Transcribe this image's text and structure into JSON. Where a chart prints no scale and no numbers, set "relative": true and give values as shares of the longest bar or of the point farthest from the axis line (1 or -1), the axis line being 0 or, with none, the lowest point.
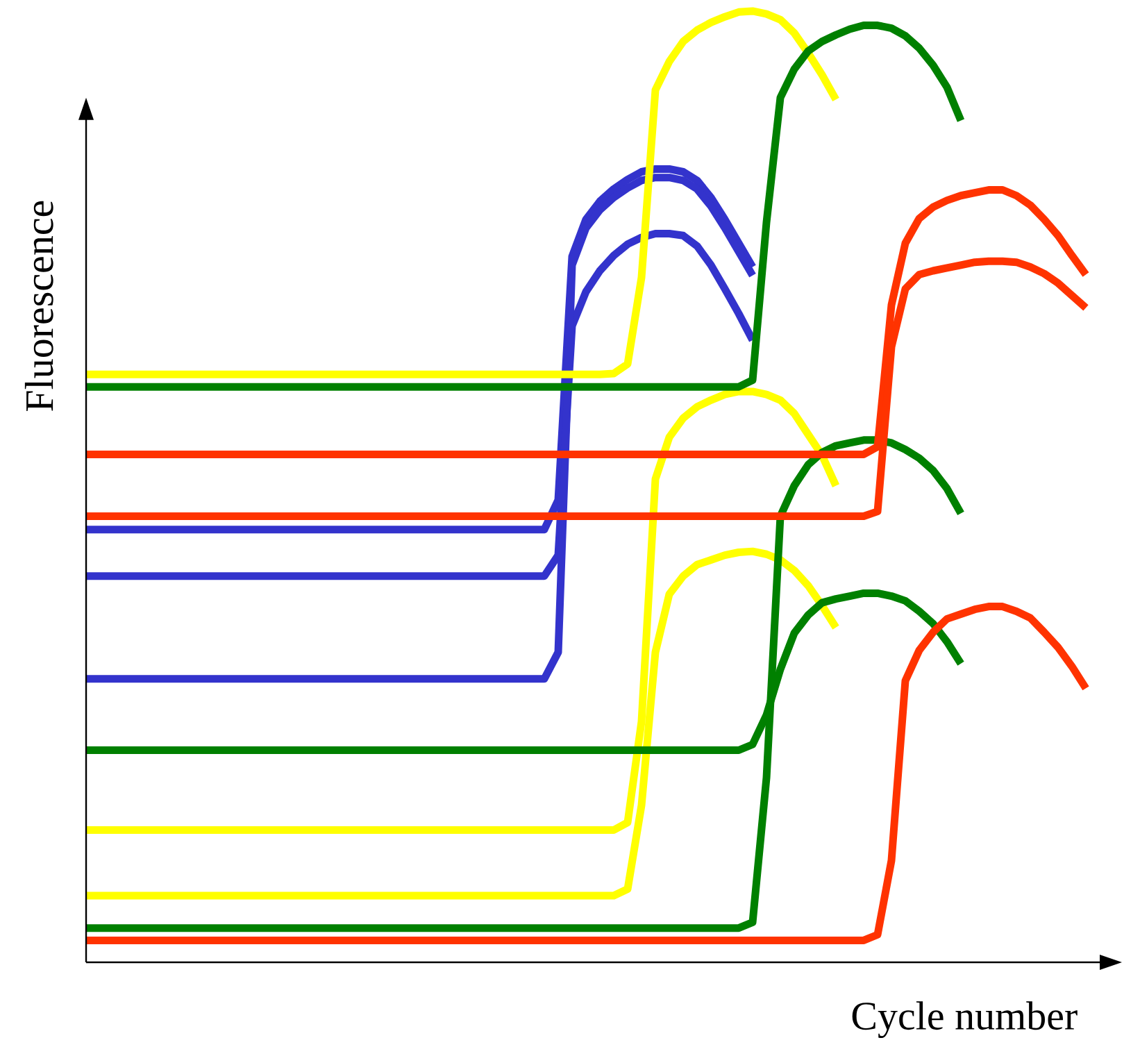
{
  "chart_data": {
    "type": "line",
    "relative": true,
    "xlabel": "Cycle number",
    "ylabel": "Fluorescence",
    "categories": [
      null,
      null,
      null,
      null,
      null,
      null,
      null,
      null,
      null,
      null,
      null,
      null,
      null,
      null,
      null,
      null,
      null,
      null,
      null,
      null,
      null,
      null,
      null,
      null,
      null,
      null,
      null,
      null,
      null,
      null,
      null,
      null,
      null,
      null,
      null,
      null,
      null,
      null,
      null,
      null,
      null,
      null,
      null,
      null,
      null,
      null,
      null,
      null,
      null,
      null,
      null,
      null,
      null,
      null,
      null,
      null,
      null,
      null,
      null,
      null,
      null,
      null,
      null,
      null,
      null,
      null,
      null,
      null,
      null,
      null,
      null,
      null,
      null
    ],
    "series": [
      {
        "color": "#3333cc",
        "values": [
          0.455,
          0.455,
          0.455,
          0.455,
          0.455,
          0.455,
          0.455,
          0.455,
          0.455,
          0.455,
          0.455,
          0.455,
          0.455,
          0.455,
          0.455,
          0.455,
          0.455,
          0.455,
          0.455,
          0.455,
          0.455,
          0.455,
          0.455,
          0.455,
          0.455,
          0.455,
          0.455,
          0.455,
          0.455,
          0.455,
          0.455,
          0.455,
          0.455,
          0.455,
          0.486,
          0.742,
          0.781,
          0.8,
          0.813,
          0.823,
          0.831,
          0.834,
          0.834,
          0.831,
          0.822,
          0.804,
          0.781,
          0.756,
          0.731,
          null,
          null,
          null,
          null,
          null,
          null,
          null,
          null,
          null,
          null,
          null,
          null,
          null,
          null,
          null,
          null,
          null,
          null,
          null,
          null,
          null,
          null,
          null,
          null
        ]
      },
      {
        "color": "#3333cc",
        "values": [
          0.406,
          0.406,
          0.406,
          0.406,
          0.406,
          0.406,
          0.406,
          0.406,
          0.406,
          0.406,
          0.406,
          0.406,
          0.406,
          0.406,
          0.406,
          0.406,
          0.406,
          0.406,
          0.406,
          0.406,
          0.406,
          0.406,
          0.406,
          0.406,
          0.406,
          0.406,
          0.406,
          0.406,
          0.406,
          0.406,
          0.406,
          0.406,
          0.406,
          0.406,
          0.428,
          0.669,
          0.705,
          0.727,
          0.743,
          0.755,
          0.762,
          0.766,
          0.766,
          0.764,
          0.753,
          0.733,
          0.708,
          0.682,
          0.654,
          null,
          null,
          null,
          null,
          null,
          null,
          null,
          null,
          null,
          null,
          null,
          null,
          null,
          null,
          null,
          null,
          null,
          null,
          null,
          null,
          null,
          null,
          null,
          null
        ]
      },
      {
        "color": "#3333cc",
        "values": [
          0.298,
          0.298,
          0.298,
          0.298,
          0.298,
          0.298,
          0.298,
          0.298,
          0.298,
          0.298,
          0.298,
          0.298,
          0.298,
          0.298,
          0.298,
          0.298,
          0.298,
          0.298,
          0.298,
          0.298,
          0.298,
          0.298,
          0.298,
          0.298,
          0.298,
          0.298,
          0.298,
          0.298,
          0.298,
          0.298,
          0.298,
          0.298,
          0.298,
          0.298,
          0.326,
          0.733,
          0.772,
          0.791,
          0.804,
          0.814,
          0.822,
          0.825,
          0.825,
          0.822,
          0.813,
          0.795,
          0.772,
          0.747,
          0.722,
          null,
          null,
          null,
          null,
          null,
          null,
          null,
          null,
          null,
          null,
          null,
          null,
          null,
          null,
          null,
          null,
          null,
          null,
          null,
          null,
          null,
          null,
          null,
          null
        ]
      },
      {
        "color": "#ffff00",
        "values": [
          0.618,
          0.618,
          0.618,
          0.618,
          0.618,
          0.618,
          0.618,
          0.618,
          0.618,
          0.618,
          0.618,
          0.618,
          0.618,
          0.618,
          0.618,
          0.618,
          0.618,
          0.618,
          0.618,
          0.618,
          0.618,
          0.618,
          0.618,
          0.618,
          0.618,
          0.618,
          0.618,
          0.618,
          0.618,
          0.618,
          0.618,
          0.618,
          0.618,
          0.618,
          0.618,
          0.618,
          0.618,
          0.618,
          0.619,
          0.629,
          0.72,
          0.917,
          0.947,
          0.968,
          0.98,
          0.988,
          0.994,
          0.999,
          1.0,
          0.997,
          0.991,
          0.977,
          0.956,
          0.933,
          0.907,
          null,
          null,
          null,
          null,
          null,
          null,
          null,
          null,
          null,
          null,
          null,
          null,
          null,
          null,
          null,
          null,
          null,
          null
        ]
      },
      {
        "color": "#ffff00",
        "values": [
          0.139,
          0.139,
          0.139,
          0.139,
          0.139,
          0.139,
          0.139,
          0.139,
          0.139,
          0.139,
          0.139,
          0.139,
          0.139,
          0.139,
          0.139,
          0.139,
          0.139,
          0.139,
          0.139,
          0.139,
          0.139,
          0.139,
          0.139,
          0.139,
          0.139,
          0.139,
          0.139,
          0.139,
          0.139,
          0.139,
          0.139,
          0.139,
          0.139,
          0.139,
          0.139,
          0.139,
          0.139,
          0.139,
          0.139,
          0.147,
          0.253,
          0.508,
          0.552,
          0.572,
          0.584,
          0.591,
          0.597,
          0.6,
          0.6,
          0.597,
          0.591,
          0.577,
          0.555,
          0.533,
          0.501,
          null,
          null,
          null,
          null,
          null,
          null,
          null,
          null,
          null,
          null,
          null,
          null,
          null,
          null,
          null,
          null,
          null,
          null
        ]
      },
      {
        "color": "#ffff00",
        "values": [
          0.07,
          0.07,
          0.07,
          0.07,
          0.07,
          0.07,
          0.07,
          0.07,
          0.07,
          0.07,
          0.07,
          0.07,
          0.07,
          0.07,
          0.07,
          0.07,
          0.07,
          0.07,
          0.07,
          0.07,
          0.07,
          0.07,
          0.07,
          0.07,
          0.07,
          0.07,
          0.07,
          0.07,
          0.07,
          0.07,
          0.07,
          0.07,
          0.07,
          0.07,
          0.07,
          0.07,
          0.07,
          0.07,
          0.07,
          0.077,
          0.165,
          0.326,
          0.387,
          0.406,
          0.418,
          0.423,
          0.428,
          0.431,
          0.432,
          0.429,
          0.423,
          0.412,
          0.396,
          0.375,
          0.352,
          null,
          null,
          null,
          null,
          null,
          null,
          null,
          null,
          null,
          null,
          null,
          null,
          null,
          null,
          null,
          null,
          null,
          null
        ]
      },
      {
        "color": "#008000",
        "values": [
          0.605,
          0.605,
          0.605,
          0.605,
          0.605,
          0.605,
          0.605,
          0.605,
          0.605,
          0.605,
          0.605,
          0.605,
          0.605,
          0.605,
          0.605,
          0.605,
          0.605,
          0.605,
          0.605,
          0.605,
          0.605,
          0.605,
          0.605,
          0.605,
          0.605,
          0.605,
          0.605,
          0.605,
          0.605,
          0.605,
          0.605,
          0.605,
          0.605,
          0.605,
          0.605,
          0.605,
          0.605,
          0.605,
          0.605,
          0.605,
          0.605,
          0.605,
          0.605,
          0.605,
          0.605,
          0.605,
          0.605,
          0.605,
          0.612,
          0.778,
          0.909,
          0.939,
          0.958,
          0.968,
          0.975,
          0.981,
          0.985,
          0.985,
          0.982,
          0.974,
          0.961,
          0.943,
          0.92,
          0.885,
          null,
          null,
          null,
          null,
          null,
          null,
          null,
          null,
          null
        ]
      },
      {
        "color": "#008000",
        "values": [
          0.223,
          0.223,
          0.223,
          0.223,
          0.223,
          0.223,
          0.223,
          0.223,
          0.223,
          0.223,
          0.223,
          0.223,
          0.223,
          0.223,
          0.223,
          0.223,
          0.223,
          0.223,
          0.223,
          0.223,
          0.223,
          0.223,
          0.223,
          0.223,
          0.223,
          0.223,
          0.223,
          0.223,
          0.223,
          0.223,
          0.223,
          0.223,
          0.223,
          0.223,
          0.223,
          0.223,
          0.223,
          0.223,
          0.223,
          0.223,
          0.223,
          0.223,
          0.223,
          0.223,
          0.223,
          0.223,
          0.223,
          0.223,
          0.229,
          0.26,
          0.308,
          0.346,
          0.365,
          0.378,
          0.382,
          0.385,
          0.388,
          0.388,
          0.385,
          0.38,
          0.369,
          0.356,
          0.337,
          0.314,
          null,
          null,
          null,
          null,
          null,
          null,
          null,
          null,
          null
        ]
      },
      {
        "color": "#008000",
        "values": [
          0.036,
          0.036,
          0.036,
          0.036,
          0.036,
          0.036,
          0.036,
          0.036,
          0.036,
          0.036,
          0.036,
          0.036,
          0.036,
          0.036,
          0.036,
          0.036,
          0.036,
          0.036,
          0.036,
          0.036,
          0.036,
          0.036,
          0.036,
          0.036,
          0.036,
          0.036,
          0.036,
          0.036,
          0.036,
          0.036,
          0.036,
          0.036,
          0.036,
          0.036,
          0.036,
          0.036,
          0.036,
          0.036,
          0.036,
          0.036,
          0.036,
          0.036,
          0.036,
          0.036,
          0.036,
          0.036,
          0.036,
          0.036,
          0.042,
          0.194,
          0.469,
          0.501,
          0.523,
          0.536,
          0.543,
          0.546,
          0.549,
          0.549,
          0.546,
          0.539,
          0.53,
          0.517,
          0.498,
          0.472,
          null,
          null,
          null,
          null,
          null,
          null,
          null,
          null,
          null
        ]
      },
      {
        "color": "#ff3300",
        "values": [
          0.534,
          0.534,
          0.534,
          0.534,
          0.534,
          0.534,
          0.534,
          0.534,
          0.534,
          0.534,
          0.534,
          0.534,
          0.534,
          0.534,
          0.534,
          0.534,
          0.534,
          0.534,
          0.534,
          0.534,
          0.534,
          0.534,
          0.534,
          0.534,
          0.534,
          0.534,
          0.534,
          0.534,
          0.534,
          0.534,
          0.534,
          0.534,
          0.534,
          0.534,
          0.534,
          0.534,
          0.534,
          0.534,
          0.534,
          0.534,
          0.534,
          0.534,
          0.534,
          0.534,
          0.534,
          0.534,
          0.534,
          0.534,
          0.534,
          0.534,
          0.534,
          0.534,
          0.534,
          0.534,
          0.534,
          0.534,
          0.534,
          0.542,
          0.691,
          0.756,
          0.782,
          0.794,
          0.801,
          0.806,
          0.809,
          0.812,
          0.812,
          0.806,
          0.796,
          0.781,
          0.764,
          0.743,
          0.723
        ]
      },
      {
        "color": "#ff3300",
        "values": [
          0.469,
          0.469,
          0.469,
          0.469,
          0.469,
          0.469,
          0.469,
          0.469,
          0.469,
          0.469,
          0.469,
          0.469,
          0.469,
          0.469,
          0.469,
          0.469,
          0.469,
          0.469,
          0.469,
          0.469,
          0.469,
          0.469,
          0.469,
          0.469,
          0.469,
          0.469,
          0.469,
          0.469,
          0.469,
          0.469,
          0.469,
          0.469,
          0.469,
          0.469,
          0.469,
          0.469,
          0.469,
          0.469,
          0.469,
          0.469,
          0.469,
          0.469,
          0.469,
          0.469,
          0.469,
          0.469,
          0.469,
          0.469,
          0.469,
          0.469,
          0.469,
          0.469,
          0.469,
          0.469,
          0.469,
          0.469,
          0.469,
          0.474,
          0.647,
          0.708,
          0.723,
          0.727,
          0.73,
          0.733,
          0.736,
          0.737,
          0.737,
          0.736,
          0.731,
          0.724,
          0.714,
          0.701,
          0.688
        ]
      },
      {
        "color": "#ff3300",
        "values": [
          0.023,
          0.023,
          0.023,
          0.023,
          0.023,
          0.023,
          0.023,
          0.023,
          0.023,
          0.023,
          0.023,
          0.023,
          0.023,
          0.023,
          0.023,
          0.023,
          0.023,
          0.023,
          0.023,
          0.023,
          0.023,
          0.023,
          0.023,
          0.023,
          0.023,
          0.023,
          0.023,
          0.023,
          0.023,
          0.023,
          0.023,
          0.023,
          0.023,
          0.023,
          0.023,
          0.023,
          0.023,
          0.023,
          0.023,
          0.023,
          0.023,
          0.023,
          0.023,
          0.023,
          0.023,
          0.023,
          0.023,
          0.023,
          0.023,
          0.023,
          0.023,
          0.023,
          0.023,
          0.023,
          0.023,
          0.023,
          0.023,
          0.029,
          0.107,
          0.296,
          0.328,
          0.347,
          0.361,
          0.366,
          0.371,
          0.374,
          0.374,
          0.369,
          0.362,
          0.347,
          0.331,
          0.311,
          0.288
        ]
      }
    ]
  }
}
